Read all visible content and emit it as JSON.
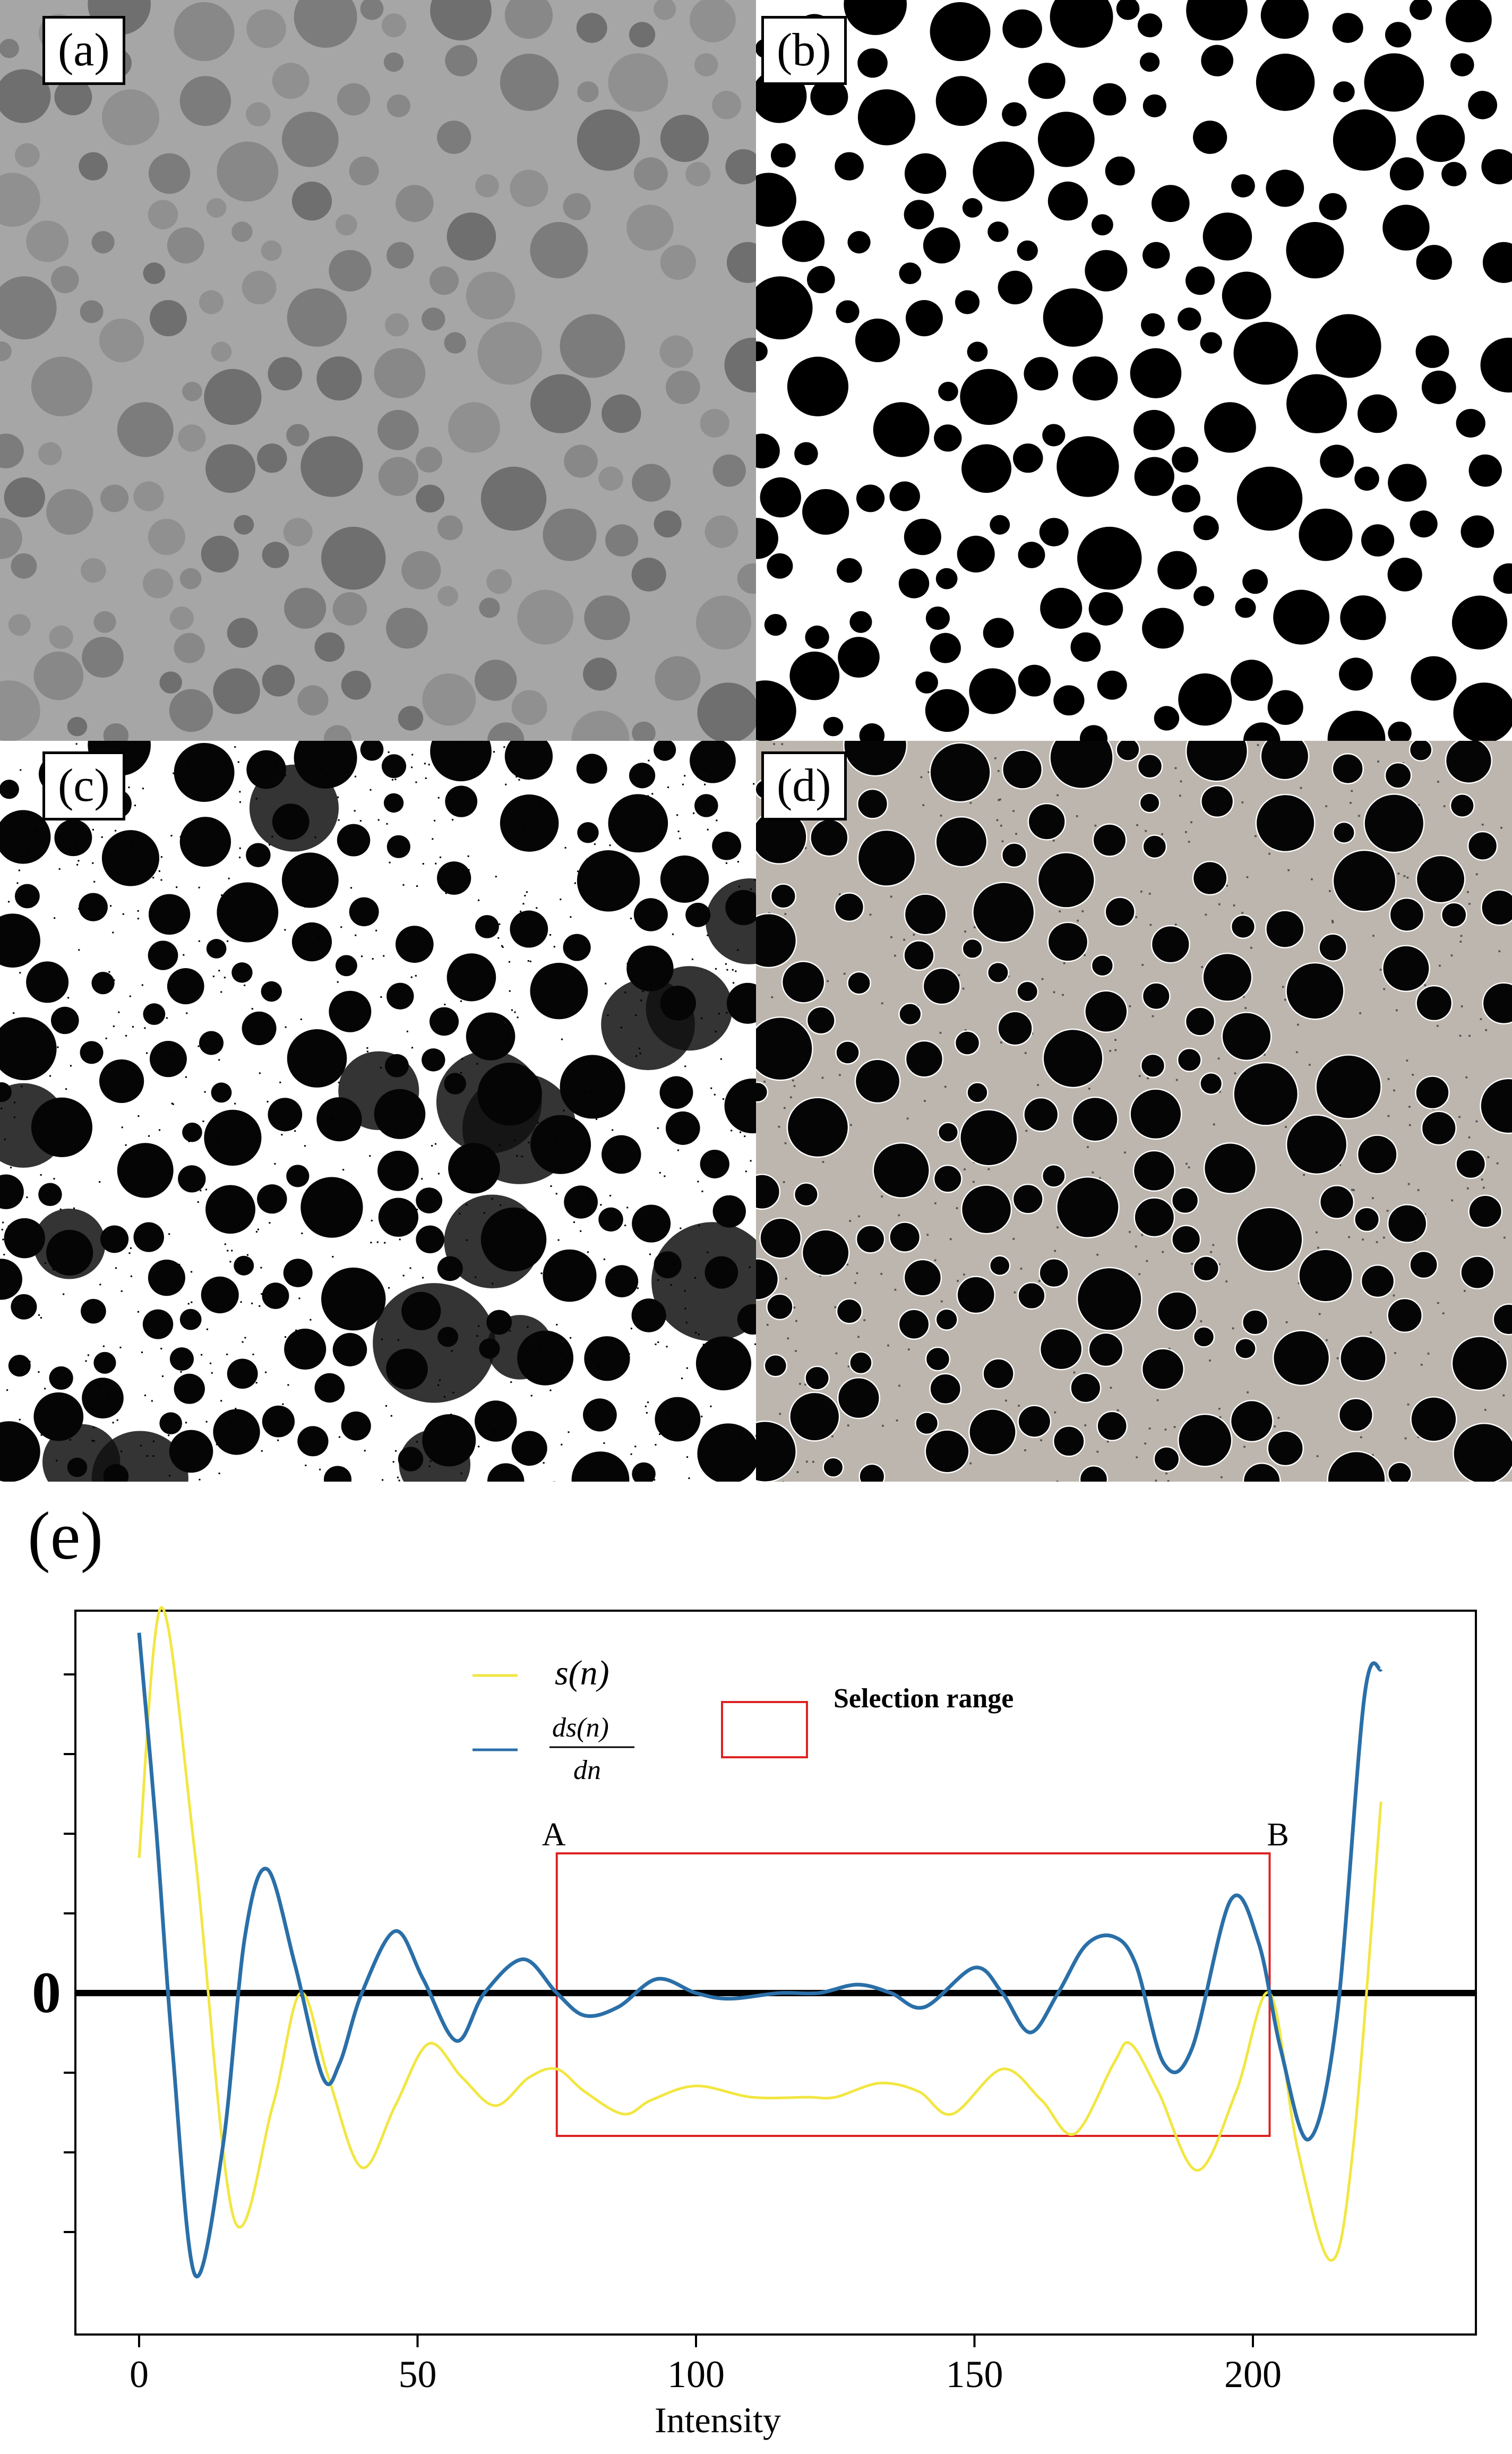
{
  "panels": [
    {
      "label": "(a)",
      "style": "gray"
    },
    {
      "label": "(b)",
      "style": "binary"
    },
    {
      "label": "(c)",
      "style": "noisy"
    },
    {
      "label": "(d)",
      "style": "speckle"
    }
  ],
  "figure_label": "(e)",
  "chart_data": {
    "type": "line",
    "xlabel": "Intensity",
    "ylabel": "",
    "xlim": [
      -5,
      235
    ],
    "xticks": [
      0,
      50,
      100,
      150,
      200
    ],
    "zero_label": "0",
    "grid": false,
    "legend": {
      "position": "top-center",
      "entries": [
        {
          "name": "s(n)",
          "color": "#f2e641"
        },
        {
          "name": "ds(n)/dn",
          "color": "#2a6fa8"
        }
      ],
      "box_label": "Selection range",
      "box_color": "#dd2222"
    },
    "selection": {
      "start": 75,
      "end": 203,
      "start_label": "A",
      "end_label": "B"
    },
    "series": [
      {
        "name": "s(n)",
        "color": "#f2e641",
        "x": [
          0,
          4,
          10,
          17,
          24,
          29,
          34,
          40,
          46,
          52,
          58,
          64,
          70,
          75,
          80,
          87,
          92,
          100,
          110,
          120,
          125,
          133,
          140,
          146,
          155,
          162,
          168,
          175,
          178,
          183,
          190,
          197,
          203,
          208,
          214,
          218,
          223
        ],
        "y": [
          0.48,
          1.37,
          0.5,
          -0.8,
          -0.4,
          0.0,
          -0.3,
          -0.62,
          -0.4,
          -0.18,
          -0.3,
          -0.4,
          -0.3,
          -0.27,
          -0.35,
          -0.43,
          -0.38,
          -0.33,
          -0.37,
          -0.37,
          -0.37,
          -0.32,
          -0.35,
          -0.43,
          -0.27,
          -0.38,
          -0.5,
          -0.25,
          -0.18,
          -0.35,
          -0.63,
          -0.35,
          0.0,
          -0.55,
          -0.95,
          -0.55,
          0.68
        ]
      },
      {
        "name": "ds(n)/dn",
        "color": "#2a6fa8",
        "x": [
          0,
          3,
          6,
          10,
          15,
          19,
          23,
          28,
          33,
          36,
          40,
          46,
          51,
          57,
          62,
          69,
          75,
          80,
          86,
          93,
          100,
          106,
          115,
          122,
          129,
          135,
          141,
          150,
          155,
          160,
          165,
          170,
          175,
          179,
          184,
          189,
          196,
          201,
          205,
          210,
          215,
          220,
          223
        ],
        "y": [
          1.28,
          0.6,
          -0.2,
          -1.0,
          -0.55,
          0.2,
          0.44,
          0.1,
          -0.3,
          -0.25,
          0.0,
          0.22,
          0.05,
          -0.17,
          0.0,
          0.12,
          0.0,
          -0.08,
          -0.05,
          0.05,
          0.0,
          -0.02,
          0.0,
          0.0,
          0.03,
          0.0,
          -0.05,
          0.09,
          0.0,
          -0.14,
          0.0,
          0.17,
          0.2,
          0.1,
          -0.25,
          -0.2,
          0.33,
          0.18,
          -0.2,
          -0.52,
          -0.1,
          1.05,
          1.15
        ]
      }
    ]
  }
}
